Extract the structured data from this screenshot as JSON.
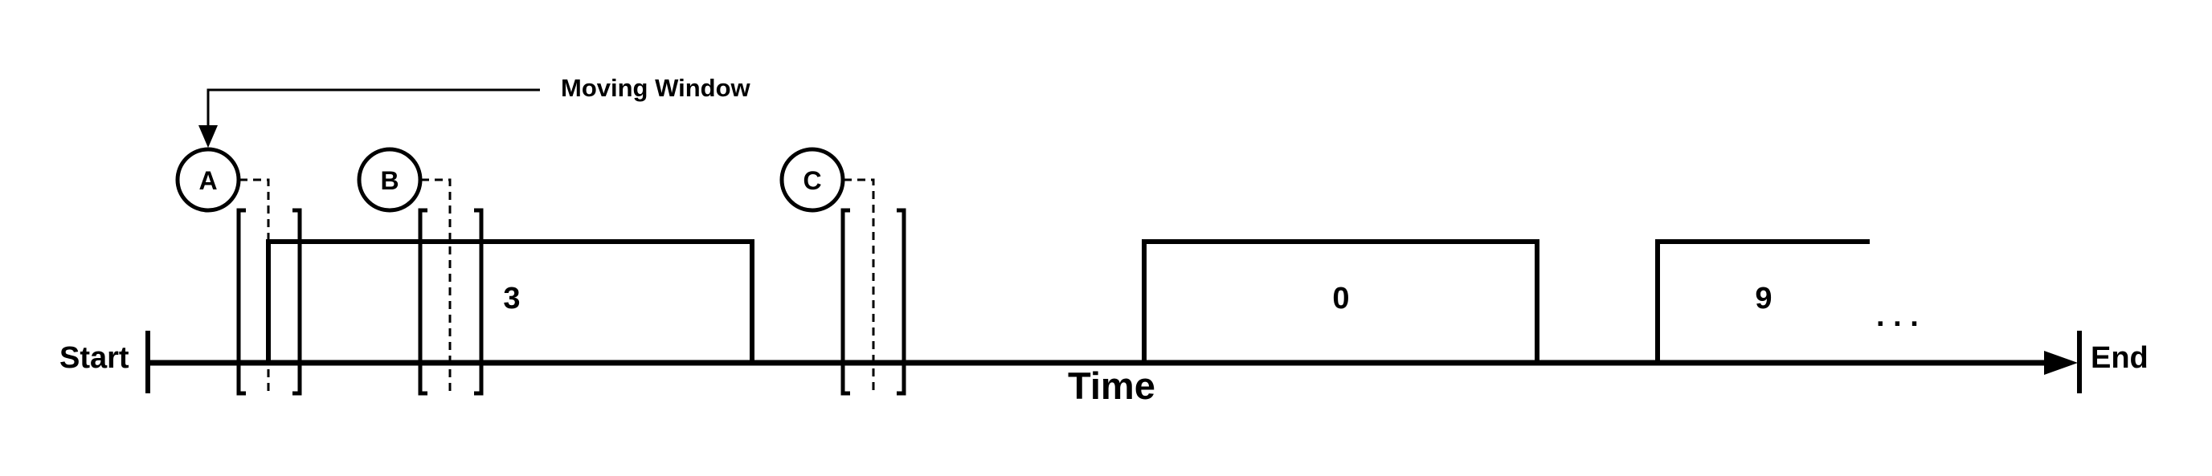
{
  "diagram": {
    "labels": {
      "start": "Start",
      "end": "End",
      "axis": "Time",
      "annotation": "Moving Window",
      "ellipsis": ". . ."
    },
    "windows": [
      {
        "label": "A"
      },
      {
        "label": "B"
      },
      {
        "label": "C"
      }
    ],
    "pulses": [
      {
        "value": "3"
      },
      {
        "value": "0"
      },
      {
        "value": "9"
      }
    ]
  }
}
